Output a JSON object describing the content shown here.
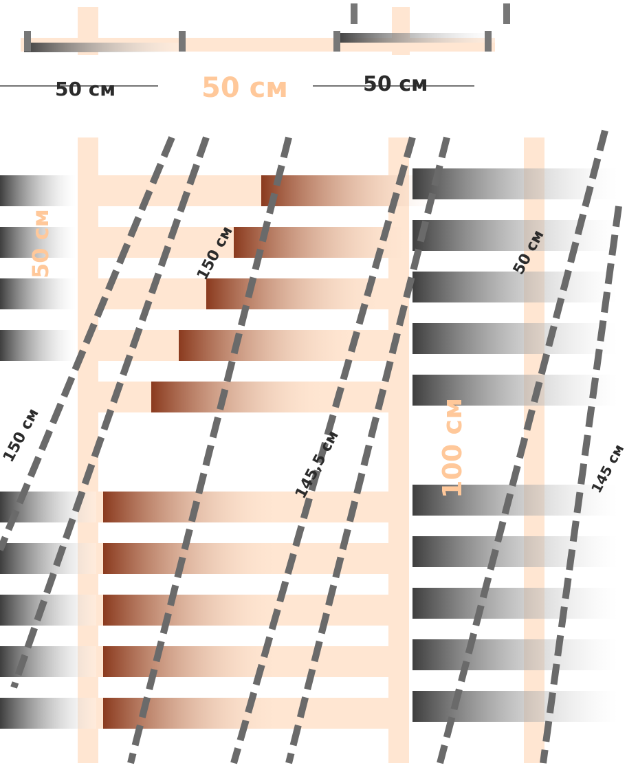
{
  "diagram": {
    "colors": {
      "frame": "#ffe6d2",
      "rung_brown": "#8a3a1e",
      "rung_gray": "#4a4a4a",
      "label_orange": "#ffc89a",
      "label_dark": "#2b2b2b"
    },
    "labels": {
      "top_center_width": "50 см",
      "top_left_width": "50 см",
      "top_right_width": "50 см",
      "left_height": "50 см",
      "right_height": "100 см",
      "diag_upper": "150 см",
      "diag_middle": "145,5 см",
      "diag_right": "50 см",
      "diag_far_right": "145 см",
      "diag_left": "150 см"
    }
  }
}
